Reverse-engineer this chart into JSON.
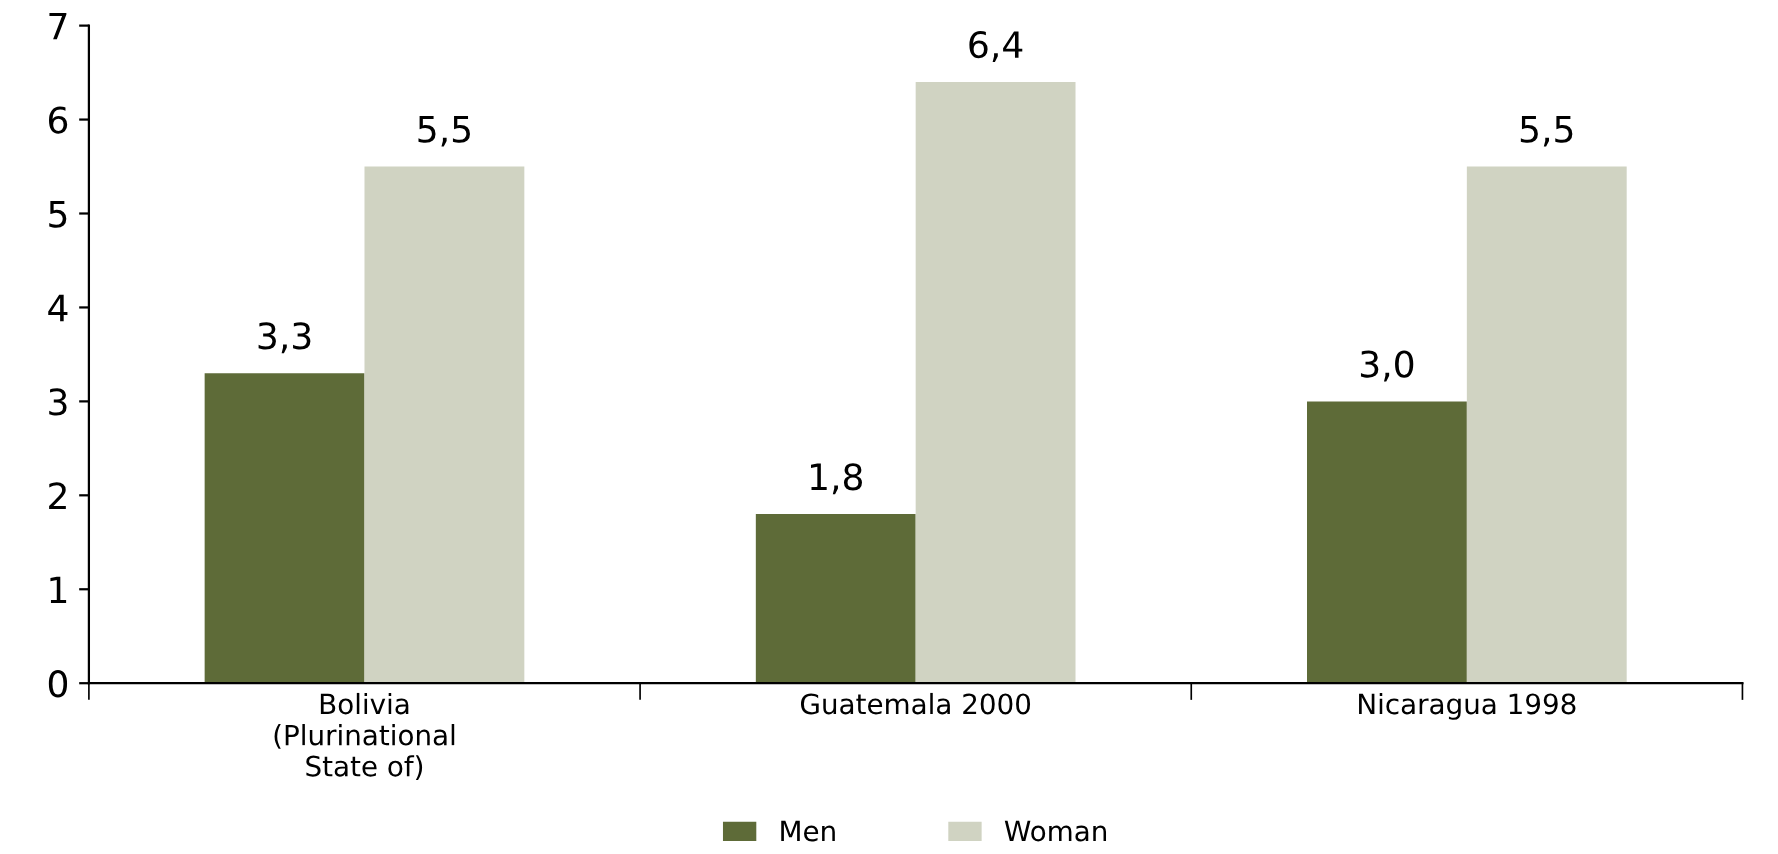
{
  "chart_data": {
    "type": "bar",
    "categories": [
      "Bolivia\n(Plurinational\nState of)",
      "Guatemala 2000",
      "Nicaragua 1998"
    ],
    "series": [
      {
        "name": "Men",
        "color": "#5e6b38",
        "values": [
          3.3,
          1.8,
          3.0
        ],
        "value_labels": [
          "3,3",
          "1,8",
          "3,0"
        ]
      },
      {
        "name": "Woman",
        "color": "#d0d3c2",
        "values": [
          5.5,
          6.4,
          5.5
        ],
        "value_labels": [
          "5,5",
          "6,4",
          "5,5"
        ]
      }
    ],
    "ylim": [
      0,
      7
    ],
    "yticks": [
      0,
      1,
      2,
      3,
      4,
      5,
      6,
      7
    ],
    "grid": false,
    "legend": "bottom"
  }
}
